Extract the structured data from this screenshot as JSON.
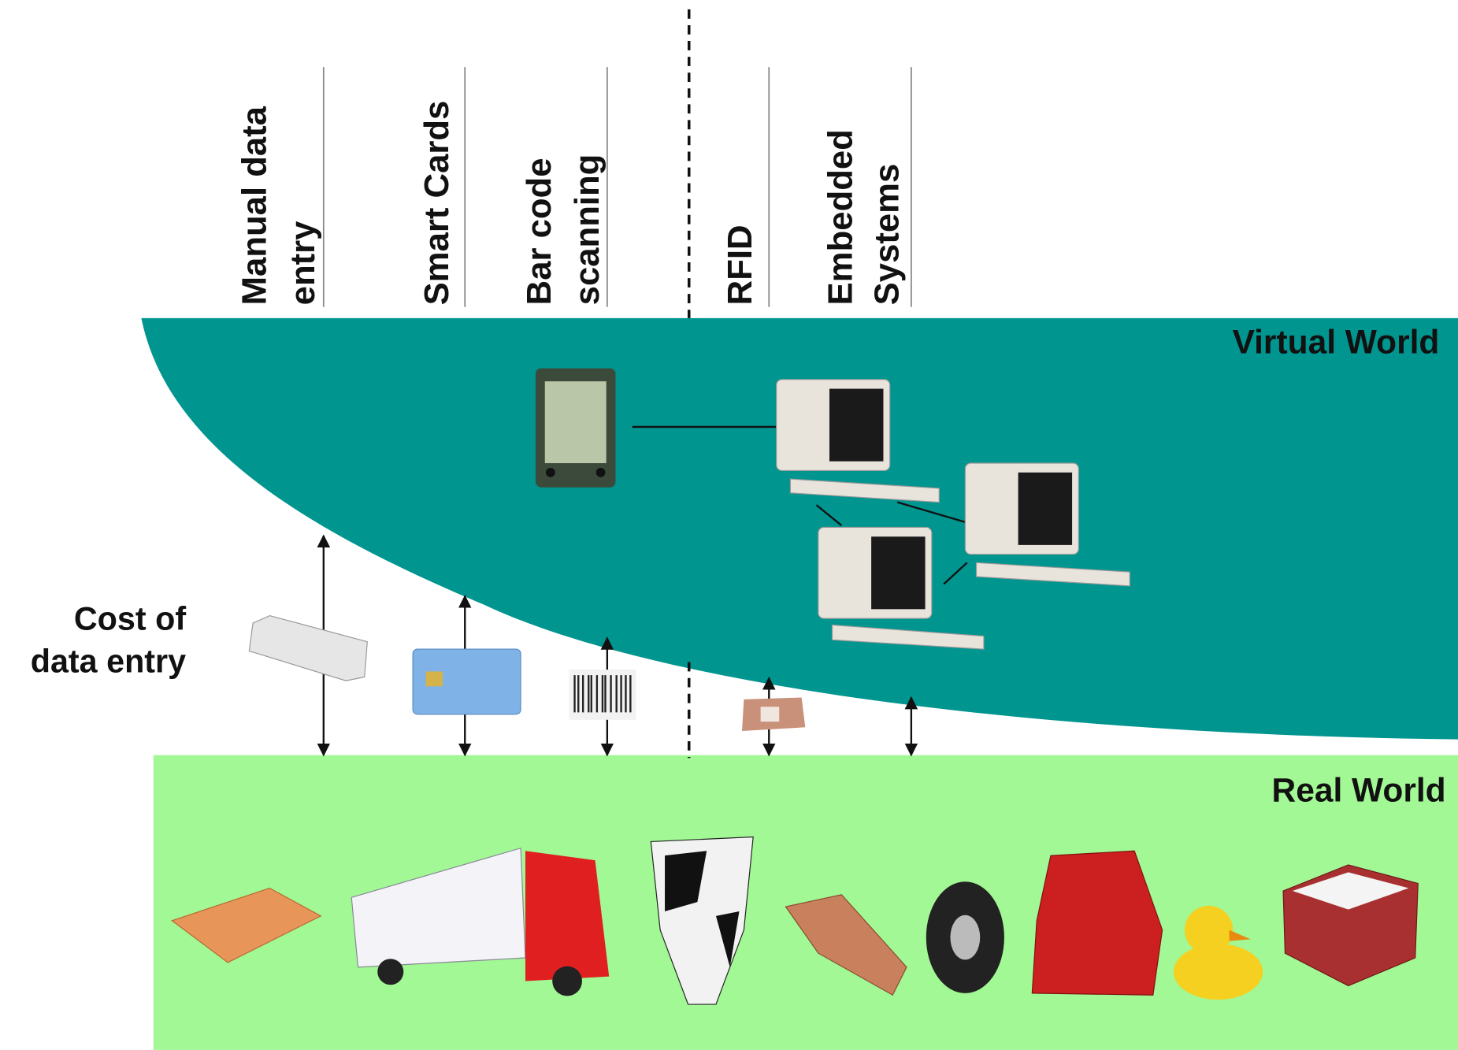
{
  "technologies": [
    {
      "lines": [
        "Manual data",
        "entry"
      ]
    },
    {
      "lines": [
        "Smart Cards"
      ]
    },
    {
      "lines": [
        "Bar code",
        "scanning"
      ]
    },
    {
      "lines": [
        "RFID"
      ]
    },
    {
      "lines": [
        "Embedded",
        "Systems"
      ]
    }
  ],
  "virtual_world": "Virtual World",
  "real_world": "Real World",
  "cost_label": [
    "Cost of",
    "data entry"
  ]
}
